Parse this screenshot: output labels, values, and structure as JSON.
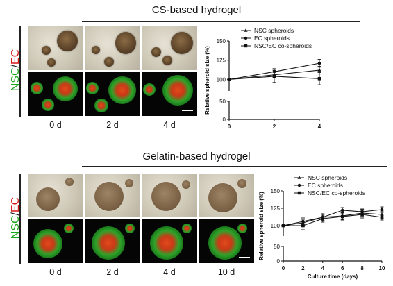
{
  "panels": [
    {
      "title": "CS-based hydrogel",
      "side_label": {
        "part1": "NSC",
        "sep": "/",
        "part2": "EC"
      },
      "day_labels": [
        "0 d",
        "2 d",
        "4 d"
      ],
      "chart_data": {
        "type": "line",
        "xlabel": "Culture time (days)",
        "ylabel": "Relative spheroid size (%)",
        "x": [
          0,
          2,
          4
        ],
        "xticks": [
          0,
          2,
          4
        ],
        "yticks": [
          0,
          50,
          100,
          125,
          150
        ],
        "ylim": [
          0,
          150
        ],
        "axis_break": [
          50,
          85
        ],
        "series": [
          {
            "name": "NSC spheroids",
            "marker": "triangle",
            "values": [
              100,
              106,
              112
            ],
            "err": [
              0,
              4,
              5
            ]
          },
          {
            "name": "EC spheroids",
            "marker": "circle",
            "values": [
              100,
              110,
              121
            ],
            "err": [
              0,
              4,
              5
            ]
          },
          {
            "name": "NSC/EC co-spheroids",
            "marker": "square",
            "values": [
              100,
              104,
              101
            ],
            "err": [
              0,
              8,
              8
            ]
          }
        ],
        "legend": "top-right"
      }
    },
    {
      "title": "Gelatin-based hydrogel",
      "side_label": {
        "part1": "NSC",
        "sep": "/",
        "part2": "EC"
      },
      "day_labels": [
        "0 d",
        "2 d",
        "4 d",
        "10 d"
      ],
      "chart_data": {
        "type": "line",
        "xlabel": "Culture time (days)",
        "ylabel": "Relative spheroid size (%)",
        "x": [
          0,
          2,
          4,
          6,
          8,
          10
        ],
        "xticks": [
          0,
          2,
          4,
          6,
          8,
          10
        ],
        "yticks": [
          0,
          50,
          100,
          125,
          150
        ],
        "ylim": [
          0,
          150
        ],
        "axis_break": [
          50,
          85
        ],
        "series": [
          {
            "name": "NSC spheroids",
            "marker": "triangle",
            "values": [
              100,
              104,
              112,
              114,
              118,
              116
            ],
            "err": [
              0,
              5,
              5,
              5,
              5,
              5
            ]
          },
          {
            "name": "EC spheroids",
            "marker": "circle",
            "values": [
              100,
              106,
              112,
              122,
              120,
              123
            ],
            "err": [
              0,
              5,
              5,
              4,
              4,
              4
            ]
          },
          {
            "name": "NSC/EC co-spheroids",
            "marker": "square",
            "values": [
              100,
              100,
              110,
              113,
              116,
              112
            ],
            "err": [
              0,
              6,
              5,
              5,
              5,
              4
            ]
          }
        ],
        "legend": "top-right"
      }
    }
  ]
}
